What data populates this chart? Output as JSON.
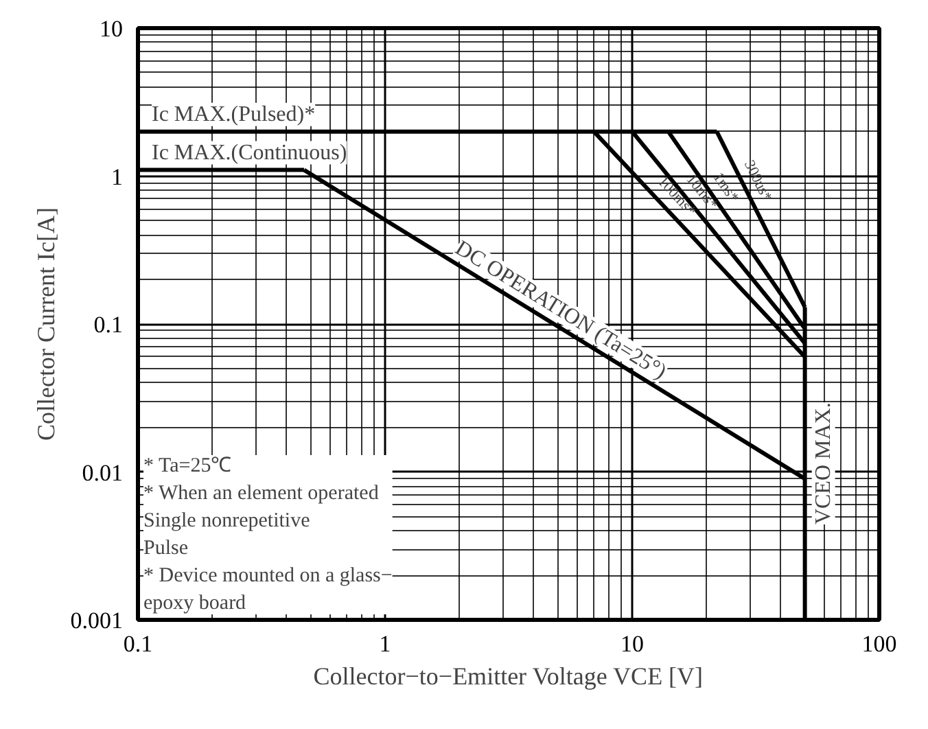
{
  "chart_data": {
    "type": "line",
    "xlabel": "Collector−to−Emitter Voltage VCE [V]",
    "ylabel": "Collector Current Ic[A]",
    "log": "xy",
    "xlim": [
      0.1,
      100
    ],
    "ylim": [
      0.001,
      10
    ],
    "xticks": [
      0.1,
      1,
      10,
      100
    ],
    "yticks": [
      0.001,
      0.01,
      0.1,
      1,
      10
    ],
    "grid": true,
    "marker": "none",
    "line_style": "solid",
    "series": [
      {
        "name": "Ic MAX.(Pulsed)*",
        "color": "#000000",
        "x": [
          0.1,
          22
        ],
        "values": [
          2,
          2
        ]
      },
      {
        "name": "Ic MAX.(Continuous)",
        "color": "#000000",
        "x": [
          0.1,
          0.47
        ],
        "values": [
          1.1,
          1.1
        ]
      },
      {
        "name": "DC OPERATION (Ta=25°)",
        "color": "#000000",
        "x": [
          0.47,
          50
        ],
        "values": [
          1.1,
          0.009
        ]
      },
      {
        "name": "100ms*",
        "color": "#000000",
        "x": [
          7,
          50
        ],
        "values": [
          2,
          0.06
        ]
      },
      {
        "name": "10ms*",
        "color": "#000000",
        "x": [
          10,
          50
        ],
        "values": [
          2,
          0.074
        ]
      },
      {
        "name": "1ms*",
        "color": "#000000",
        "x": [
          14,
          50
        ],
        "values": [
          2,
          0.093
        ]
      },
      {
        "name": "300us*",
        "color": "#000000",
        "x": [
          22,
          50
        ],
        "values": [
          2,
          0.13
        ]
      },
      {
        "name": "VCEO MAX.",
        "color": "#000000",
        "x": [
          50,
          50
        ],
        "values": [
          0.13,
          0.001
        ]
      }
    ],
    "annotations": [
      "* Ta=25℃",
      "* When an element operated\n   Single nonrepetitive\n   Pulse",
      "* Device mounted on a glass−\n   epoxy board"
    ]
  }
}
